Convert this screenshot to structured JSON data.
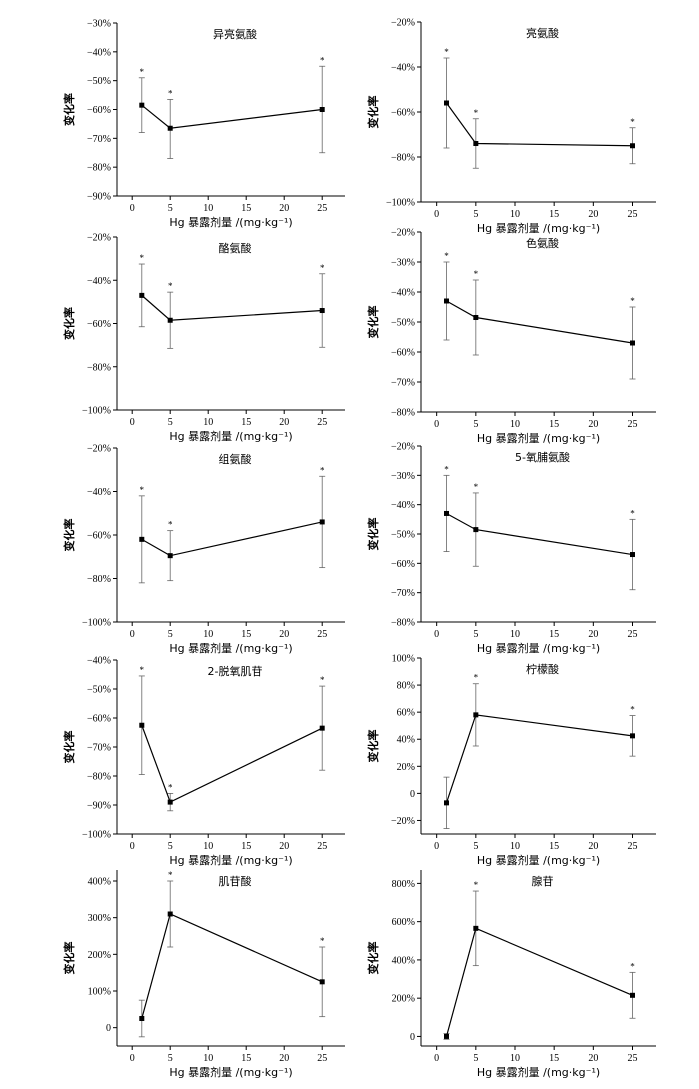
{
  "chart_data": [
    {
      "type": "line",
      "title": "异亮氨酸",
      "xlabel": "Hg 暴露剂量 /(mg·kg⁻¹)",
      "ylabel": "变化率",
      "x": [
        1,
        5,
        25
      ],
      "values": [
        -58.5,
        -66.5,
        -60.0
      ],
      "err_upper": [
        9.5,
        10.0,
        15.0
      ],
      "err_lower": [
        9.5,
        10.5,
        15.0
      ],
      "significance": [
        "*",
        "*",
        "*"
      ],
      "xlim": [
        -2,
        28
      ],
      "xticks": [
        0,
        5,
        10,
        15,
        20,
        25
      ],
      "ylim": [
        -90,
        -30
      ],
      "yticks": [
        -90,
        -80,
        -70,
        -60,
        -50,
        -40,
        -30
      ],
      "ytick_labels": [
        "−90%",
        "−80%",
        "−70%",
        "−60%",
        "−50%",
        "−40%",
        "−30%"
      ]
    },
    {
      "type": "line",
      "title": "亮氨酸",
      "xlabel": "Hg 暴露剂量 /(mg·kg⁻¹)",
      "ylabel": "变化率",
      "x": [
        1,
        5,
        25
      ],
      "values": [
        -56.0,
        -74.0,
        -75.0
      ],
      "err_upper": [
        20.0,
        11.0,
        8.0
      ],
      "err_lower": [
        20.0,
        11.0,
        8.0
      ],
      "significance": [
        "*",
        "*",
        "*"
      ],
      "xlim": [
        -2,
        28
      ],
      "xticks": [
        0,
        5,
        10,
        15,
        20,
        25
      ],
      "ylim": [
        -100,
        -20
      ],
      "yticks": [
        -100,
        -80,
        -60,
        -40,
        -20
      ],
      "ytick_labels": [
        "−100%",
        "−80%",
        "−60%",
        "−40%",
        "−20%"
      ]
    },
    {
      "type": "line",
      "title": "酪氨酸",
      "xlabel": "Hg 暴露剂量 /(mg·kg⁻¹)",
      "ylabel": "变化率",
      "x": [
        1,
        5,
        25
      ],
      "values": [
        -47.0,
        -58.5,
        -54.0
      ],
      "err_upper": [
        14.5,
        13.0,
        17.0
      ],
      "err_lower": [
        14.5,
        13.0,
        17.0
      ],
      "significance": [
        "*",
        "*",
        "*"
      ],
      "xlim": [
        -2,
        28
      ],
      "xticks": [
        0,
        5,
        10,
        15,
        20,
        25
      ],
      "ylim": [
        -100,
        -20
      ],
      "yticks": [
        -100,
        -80,
        -60,
        -40,
        -20
      ],
      "ytick_labels": [
        "−100%",
        "−80%",
        "−60%",
        "−40%",
        "−20%"
      ]
    },
    {
      "type": "line",
      "title": "色氨酸",
      "xlabel": "Hg 暴露剂量 /(mg·kg⁻¹)",
      "ylabel": "变化率",
      "x": [
        1,
        5,
        25
      ],
      "values": [
        -43.0,
        -48.5,
        -57.0
      ],
      "err_upper": [
        13.0,
        12.5,
        12.0
      ],
      "err_lower": [
        13.0,
        12.5,
        12.0
      ],
      "significance": [
        "*",
        "*",
        "*"
      ],
      "xlim": [
        -2,
        28
      ],
      "xticks": [
        0,
        5,
        10,
        15,
        20,
        25
      ],
      "ylim": [
        -80,
        -20
      ],
      "yticks": [
        -80,
        -70,
        -60,
        -50,
        -40,
        -30,
        -20
      ],
      "ytick_labels": [
        "−80%",
        "−70%",
        "−60%",
        "−50%",
        "−40%",
        "−30%",
        "−20%"
      ]
    },
    {
      "type": "line",
      "title": "组氨酸",
      "xlabel": "Hg 暴露剂量 /(mg·kg⁻¹)",
      "ylabel": "变化率",
      "x": [
        1,
        5,
        25
      ],
      "values": [
        -62.0,
        -69.5,
        -54.0
      ],
      "err_upper": [
        20.0,
        11.5,
        21.0
      ],
      "err_lower": [
        20.0,
        11.5,
        21.0
      ],
      "significance": [
        "*",
        "*",
        "*"
      ],
      "xlim": [
        -2,
        28
      ],
      "xticks": [
        0,
        5,
        10,
        15,
        20,
        25
      ],
      "ylim": [
        -100,
        -20
      ],
      "yticks": [
        -100,
        -80,
        -60,
        -40,
        -20
      ],
      "ytick_labels": [
        "−100%",
        "−80%",
        "−60%",
        "−40%",
        "−20%"
      ]
    },
    {
      "type": "line",
      "title": "5-氧脯氨酸",
      "xlabel": "Hg 暴露剂量 /(mg·kg⁻¹)",
      "ylabel": "变化率",
      "x": [
        1,
        5,
        25
      ],
      "values": [
        -43.0,
        -48.5,
        -57.0
      ],
      "err_upper": [
        13.0,
        12.5,
        12.0
      ],
      "err_lower": [
        13.0,
        12.5,
        12.0
      ],
      "significance": [
        "*",
        "*",
        "*"
      ],
      "xlim": [
        -2,
        28
      ],
      "xticks": [
        0,
        5,
        10,
        15,
        20,
        25
      ],
      "ylim": [
        -80,
        -20
      ],
      "yticks": [
        -80,
        -70,
        -60,
        -50,
        -40,
        -30,
        -20
      ],
      "ytick_labels": [
        "−80%",
        "−70%",
        "−60%",
        "−50%",
        "−40%",
        "−30%",
        "−20%"
      ]
    },
    {
      "type": "line",
      "title": "2-脱氧肌苷",
      "xlabel": "Hg 暴露剂量 /(mg·kg⁻¹)",
      "ylabel": "变化率",
      "x": [
        1,
        5,
        25
      ],
      "values": [
        -62.5,
        -89.0,
        -63.5
      ],
      "err_upper": [
        17.0,
        3.0,
        14.5
      ],
      "err_lower": [
        17.0,
        3.0,
        14.5
      ],
      "significance": [
        "*",
        "*",
        "*"
      ],
      "xlim": [
        -2,
        28
      ],
      "xticks": [
        0,
        5,
        10,
        15,
        20,
        25
      ],
      "ylim": [
        -100,
        -40
      ],
      "yticks": [
        -100,
        -90,
        -80,
        -70,
        -60,
        -50,
        -40
      ],
      "ytick_labels": [
        "−100%",
        "−90%",
        "−80%",
        "−70%",
        "−60%",
        "−50%",
        "−40%"
      ]
    },
    {
      "type": "line",
      "title": "柠檬酸",
      "xlabel": "Hg 暴露剂量 /(mg·kg⁻¹)",
      "ylabel": "变化率",
      "x": [
        1,
        5,
        25
      ],
      "values": [
        -7.0,
        58.0,
        42.5
      ],
      "err_upper": [
        19.0,
        23.0,
        15.0
      ],
      "err_lower": [
        19.0,
        23.0,
        15.0
      ],
      "significance": [
        "",
        "*",
        "*"
      ],
      "xlim": [
        -2,
        28
      ],
      "xticks": [
        0,
        5,
        10,
        15,
        20,
        25
      ],
      "ylim": [
        -30,
        100
      ],
      "yticks": [
        -20,
        0,
        20,
        40,
        60,
        80,
        100
      ],
      "ytick_labels": [
        "−20%",
        "0",
        "20%",
        "40%",
        "60%",
        "80%",
        "100%"
      ]
    },
    {
      "type": "line",
      "title": "肌苷酸",
      "xlabel": "Hg 暴露剂量 /(mg·kg⁻¹)",
      "ylabel": "变化率",
      "x": [
        1,
        5,
        25
      ],
      "values": [
        25.0,
        310.0,
        125.0
      ],
      "err_upper": [
        50.0,
        90.0,
        95.0
      ],
      "err_lower": [
        50.0,
        90.0,
        95.0
      ],
      "significance": [
        "",
        "*",
        "*"
      ],
      "xlim": [
        -2,
        28
      ],
      "xticks": [
        0,
        5,
        10,
        15,
        20,
        25
      ],
      "ylim": [
        -50,
        430
      ],
      "yticks": [
        0,
        100,
        200,
        300,
        400
      ],
      "ytick_labels": [
        "0",
        "100%",
        "200%",
        "300%",
        "400%"
      ]
    },
    {
      "type": "line",
      "title": "腺苷",
      "xlabel": "Hg 暴露剂量 /(mg·kg⁻¹)",
      "ylabel": "变化率",
      "x": [
        1,
        5,
        25
      ],
      "values": [
        0.0,
        565.0,
        215.0
      ],
      "err_upper": [
        15.0,
        195.0,
        120.0
      ],
      "err_lower": [
        15.0,
        195.0,
        120.0
      ],
      "significance": [
        "",
        "*",
        "*"
      ],
      "xlim": [
        -2,
        28
      ],
      "xticks": [
        0,
        5,
        10,
        15,
        20,
        25
      ],
      "ylim": [
        -50,
        870
      ],
      "yticks": [
        0,
        200,
        400,
        600,
        800
      ],
      "ytick_labels": [
        "0",
        "200%",
        "400%",
        "600%",
        "800%"
      ]
    }
  ]
}
